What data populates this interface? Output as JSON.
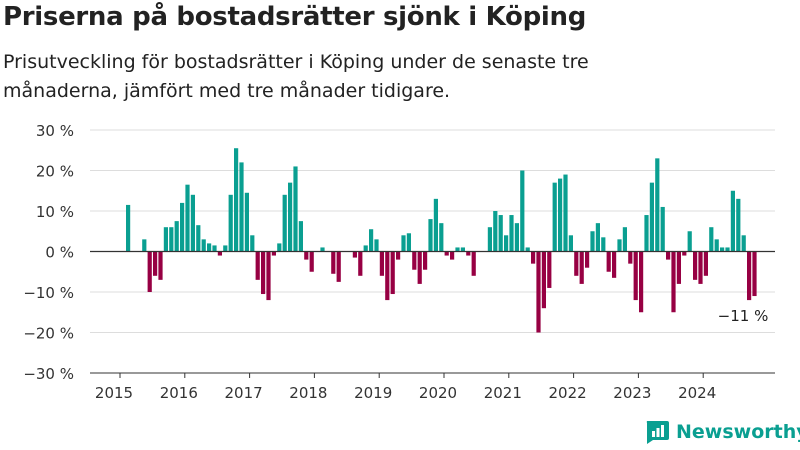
{
  "title": "Priserna på bostadsrätter sjönk i Köping",
  "subtitle": "Prisutveckling för bostadsrätter i Köping under de senaste tre månaderna, jämfört med tre månader tidigare.",
  "brand": "Newsworthy",
  "colors": {
    "positive": "#0a9f91",
    "negative": "#970043",
    "axis": "#444444",
    "grid": "#dddddd",
    "brand": "#0a9f91"
  },
  "chart_data": {
    "type": "bar",
    "title": "Priserna på bostadsrätter sjönk i Köping",
    "xlabel": "",
    "ylabel": "",
    "ylim": [
      -30,
      30
    ],
    "y_ticks": [
      "30 %",
      "20 %",
      "10 %",
      "0 %",
      "−10 %",
      "−20 %",
      "−30 %"
    ],
    "y_tick_values": [
      30,
      20,
      10,
      0,
      -10,
      -20,
      -30
    ],
    "x_ticks": [
      "2015",
      "2016",
      "2017",
      "2018",
      "2019",
      "2020",
      "2021",
      "2022",
      "2023",
      "2024"
    ],
    "grid": true,
    "start": "2015-01",
    "annotation": {
      "text": "−11 %",
      "month": "2024-11",
      "value": -11
    },
    "values": [
      null,
      11.5,
      null,
      null,
      3,
      -10,
      -6,
      -7,
      6,
      6,
      7.5,
      12,
      16.5,
      14,
      6.5,
      3,
      2,
      1.5,
      -1,
      1.5,
      14,
      25.5,
      22,
      14.5,
      4,
      -7,
      -10.5,
      -12,
      -1,
      2,
      14,
      17,
      21,
      7.5,
      -2,
      -5,
      null,
      1,
      null,
      -5.5,
      -7.5,
      null,
      null,
      -1.5,
      -6,
      1.5,
      5.5,
      3,
      -6,
      -12,
      -10.5,
      -2,
      4,
      4.5,
      -4.5,
      -8,
      -4.5,
      8,
      13,
      7,
      -1,
      -2,
      1,
      1,
      -1,
      -6,
      null,
      null,
      6,
      10,
      9,
      4,
      9,
      7,
      20,
      1,
      -3,
      -20,
      -14,
      -9,
      17,
      18,
      19,
      4,
      -6,
      -8,
      -4,
      5,
      7,
      3.5,
      -5,
      -6.5,
      3,
      6,
      -3,
      -12,
      -15,
      9,
      17,
      23,
      11,
      -2,
      -15,
      -8,
      -1,
      5,
      -7,
      -8,
      -6,
      6,
      3,
      1,
      1,
      15,
      13,
      4,
      -12,
      -11
    ]
  }
}
